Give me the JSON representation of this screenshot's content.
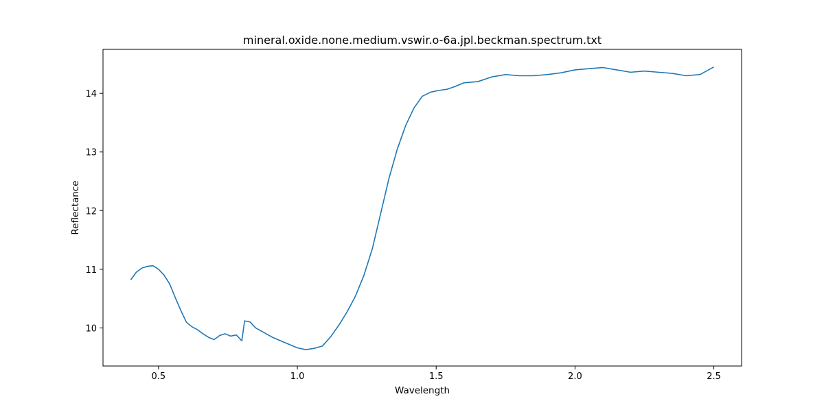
{
  "chart_data": {
    "type": "line",
    "title": "mineral.oxide.none.medium.vswir.o-6a.jpl.beckman.spectrum.txt",
    "xlabel": "Wavelength",
    "ylabel": "Reflectance",
    "xlim": [
      0.3,
      2.6
    ],
    "ylim": [
      9.35,
      14.75
    ],
    "xticks": [
      0.5,
      1.0,
      1.5,
      2.0,
      2.5
    ],
    "xtick_labels": [
      "0.5",
      "1.0",
      "1.5",
      "2.0",
      "2.5"
    ],
    "yticks": [
      10,
      11,
      12,
      13,
      14
    ],
    "ytick_labels": [
      "10",
      "11",
      "12",
      "13",
      "14"
    ],
    "grid": false,
    "legend": "none",
    "series": [
      {
        "color": "#1f77b4",
        "x": [
          0.4,
          0.42,
          0.44,
          0.46,
          0.48,
          0.5,
          0.52,
          0.54,
          0.56,
          0.58,
          0.6,
          0.62,
          0.64,
          0.66,
          0.68,
          0.7,
          0.72,
          0.74,
          0.76,
          0.78,
          0.8,
          0.81,
          0.83,
          0.85,
          0.88,
          0.91,
          0.94,
          0.97,
          1.0,
          1.03,
          1.06,
          1.09,
          1.12,
          1.15,
          1.18,
          1.21,
          1.24,
          1.27,
          1.3,
          1.33,
          1.36,
          1.39,
          1.42,
          1.45,
          1.48,
          1.51,
          1.54,
          1.57,
          1.6,
          1.65,
          1.7,
          1.75,
          1.8,
          1.85,
          1.9,
          1.95,
          2.0,
          2.05,
          2.1,
          2.15,
          2.2,
          2.25,
          2.3,
          2.35,
          2.4,
          2.45,
          2.5
        ],
        "values": [
          10.82,
          10.95,
          11.02,
          11.05,
          11.06,
          11.0,
          10.9,
          10.75,
          10.52,
          10.3,
          10.1,
          10.02,
          9.97,
          9.9,
          9.84,
          9.8,
          9.87,
          9.9,
          9.86,
          9.88,
          9.78,
          10.12,
          10.1,
          10.0,
          9.92,
          9.84,
          9.78,
          9.72,
          9.66,
          9.63,
          9.65,
          9.69,
          9.85,
          10.05,
          10.28,
          10.55,
          10.9,
          11.35,
          11.95,
          12.55,
          13.05,
          13.45,
          13.75,
          13.95,
          14.02,
          14.05,
          14.07,
          14.12,
          14.18,
          14.2,
          14.28,
          14.32,
          14.3,
          14.3,
          14.32,
          14.35,
          14.4,
          14.42,
          14.44,
          14.4,
          14.36,
          14.38,
          14.36,
          14.34,
          14.3,
          14.32,
          14.45
        ]
      }
    ]
  }
}
